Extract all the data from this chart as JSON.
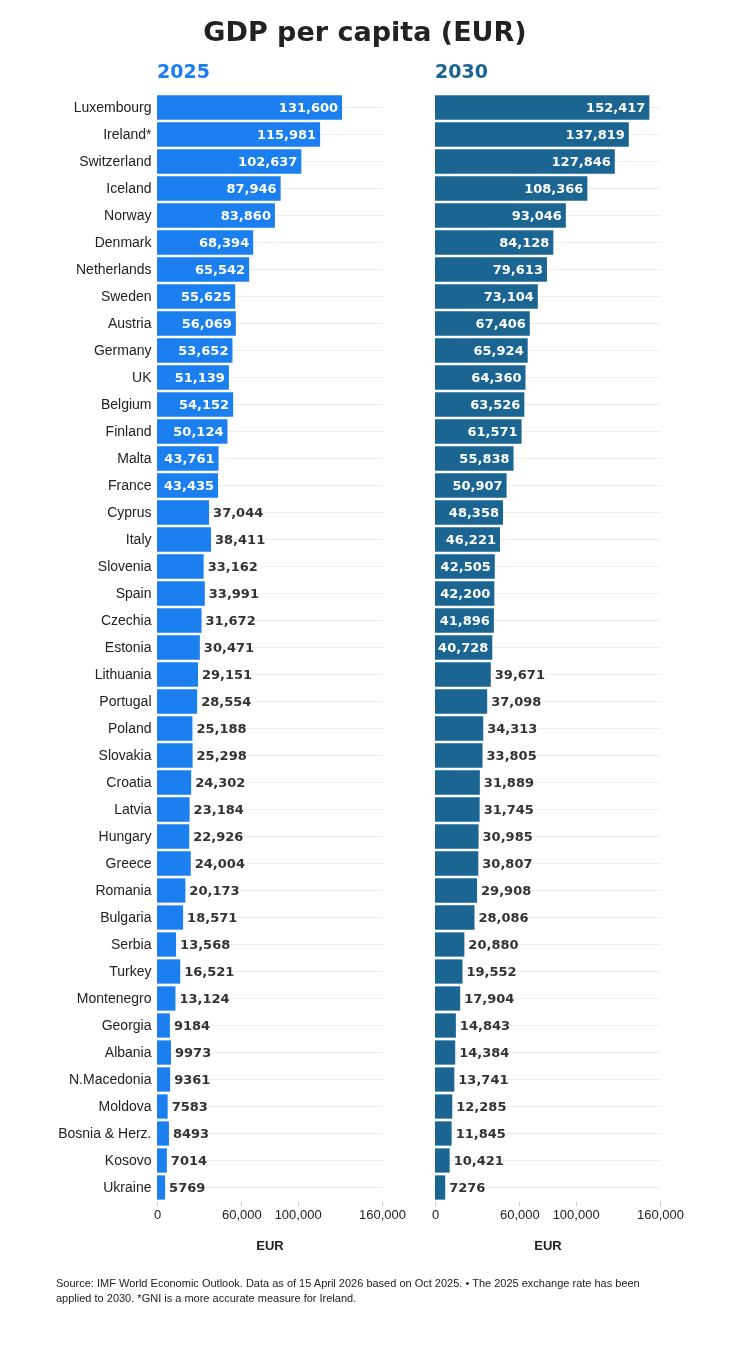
{
  "chart_data": [
    {
      "type": "bar",
      "orientation": "horizontal",
      "title": "GDP per capita (EUR)",
      "subtitle": "2025",
      "xlabel": "EUR",
      "grid": "y",
      "legend": false,
      "categories": [
        "Luxembourg",
        "Ireland*",
        "Switzerland",
        "Iceland",
        "Norway",
        "Denmark",
        "Netherlands",
        "Sweden",
        "Austria",
        "Germany",
        "UK",
        "Belgium",
        "Finland",
        "Malta",
        "France",
        "Cyprus",
        "Italy",
        "Slovenia",
        "Spain",
        "Czechia",
        "Estonia",
        "Lithuania",
        "Portugal",
        "Poland",
        "Slovakia",
        "Croatia",
        "Latvia",
        "Hungary",
        "Greece",
        "Romania",
        "Bulgaria",
        "Serbia",
        "Turkey",
        "Montenegro",
        "Georgia",
        "Albania",
        "N.Macedonia",
        "Moldova",
        "Bosnia & Herz.",
        "Kosovo",
        "Ukraine"
      ],
      "series": [
        {
          "color": "#1b7ff0",
          "values": [
            131600,
            115981,
            102637,
            87946,
            83860,
            68394,
            65542,
            55625,
            56069,
            53652,
            51139,
            54152,
            50124,
            43761,
            43435,
            37044,
            38411,
            33162,
            33991,
            31672,
            30471,
            29151,
            28554,
            25188,
            25298,
            24302,
            23184,
            22926,
            24004,
            20173,
            18571,
            13568,
            16521,
            13124,
            9184,
            9973,
            9361,
            7583,
            8493,
            7014,
            5769
          ],
          "value_labels": [
            "131,600",
            "115,981",
            "102,637",
            "87,946",
            "83,860",
            "68,394",
            "65,542",
            "55,625",
            "56,069",
            "53,652",
            "51,139",
            "54,152",
            "50,124",
            "43,761",
            "43,435",
            "37,044",
            "38,411",
            "33,162",
            "33,991",
            "31,672",
            "30,471",
            "29,151",
            "28,554",
            "25,188",
            "25,298",
            "24,302",
            "23,184",
            "22,926",
            "24,004",
            "20,173",
            "18,571",
            "13,568",
            "16,521",
            "13,124",
            "9184",
            "9973",
            "9361",
            "7583",
            "8493",
            "7014",
            "5769"
          ]
        }
      ],
      "xlim": [
        0,
        160000
      ],
      "xticks": [
        0,
        {
          "value": 60000,
          "label": "60,000"
        },
        {
          "value": 100000,
          "label": "100,000"
        },
        {
          "value": 160000,
          "label": "160,000"
        }
      ],
      "annotations": [
        "Source: IMF World Economic Outlook. Data as of 15 April 2026 based on Oct 2025. • The 2025 exchange rate has been applied to 2030. *GNI is a more accurate measure for Ireland."
      ]
    },
    {
      "type": "bar",
      "orientation": "horizontal",
      "subtitle": "2030",
      "xlabel": "EUR",
      "grid": "y",
      "legend": false,
      "tick_labels": "x",
      "categories": [
        null,
        null,
        null,
        null,
        null,
        null,
        null,
        null,
        null,
        null,
        null,
        null,
        null,
        null,
        null,
        null,
        null,
        null,
        null,
        null,
        null,
        null,
        null,
        null,
        null,
        null,
        null,
        null,
        null,
        null,
        null,
        null,
        null,
        null,
        null,
        null,
        null,
        null,
        null,
        null,
        null
      ],
      "series": [
        {
          "color": "#1b6592",
          "values": [
            152417,
            137819,
            127846,
            108366,
            93046,
            84128,
            79613,
            73104,
            67406,
            65924,
            64360,
            63526,
            61571,
            55838,
            50907,
            48358,
            46221,
            42505,
            42200,
            41896,
            40728,
            39671,
            37098,
            34313,
            33805,
            31889,
            31745,
            30985,
            30807,
            29908,
            28086,
            20880,
            19552,
            17904,
            14843,
            14384,
            13741,
            12285,
            11845,
            10421,
            7276
          ],
          "value_labels": [
            "152,417",
            "137,819",
            "127,846",
            "108,366",
            "93,046",
            "84,128",
            "79,613",
            "73,104",
            "67,406",
            "65,924",
            "64,360",
            "63,526",
            "61,571",
            "55,838",
            "50,907",
            "48,358",
            "46,221",
            "42,505",
            "42,200",
            "41,896",
            "40,728",
            "39,671",
            "37,098",
            "34,313",
            "33,805",
            "31,889",
            "31,745",
            "30,985",
            "30,807",
            "29,908",
            "28,086",
            "20,880",
            "19,552",
            "17,904",
            "14,843",
            "14,384",
            "13,741",
            "12,285",
            "11,845",
            "10,421",
            "7276"
          ]
        }
      ],
      "xlim": [
        0,
        160000
      ],
      "xticks": [
        0,
        {
          "value": 60000,
          "label": "60,000"
        },
        {
          "value": 100000,
          "label": "100,000"
        },
        {
          "value": 160000,
          "label": "160,000"
        }
      ]
    }
  ]
}
